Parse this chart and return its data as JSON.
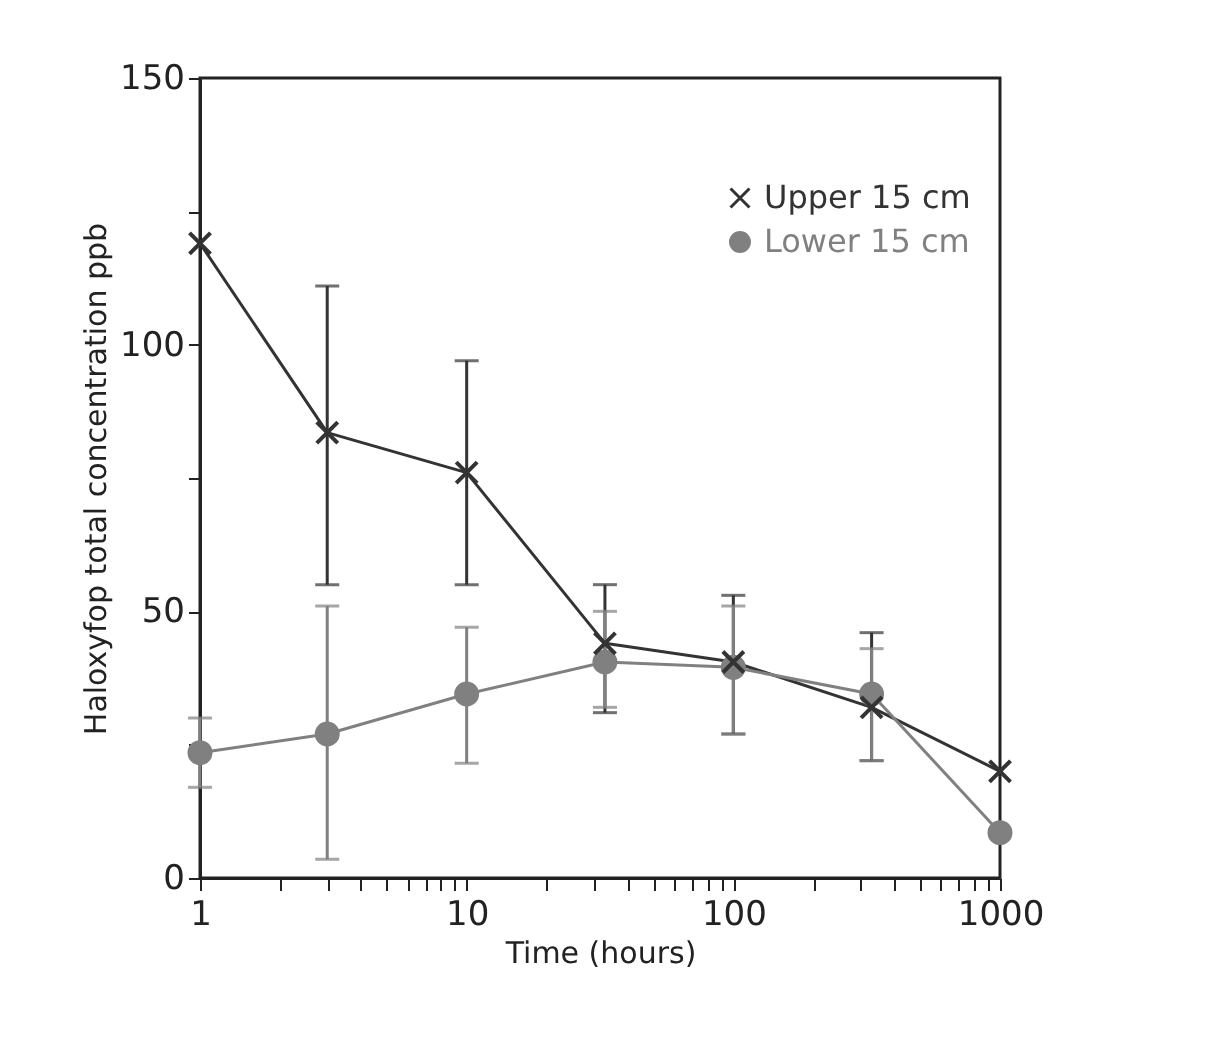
{
  "chart_data": {
    "type": "line",
    "xlabel": "Time (hours)",
    "ylabel": "Haloxyfop total concentration ppb",
    "log": "x",
    "x": [
      1,
      3,
      10,
      33,
      100,
      330,
      1000
    ],
    "xlim": [
      1,
      1000
    ],
    "xticks": [
      1,
      {
        "value": 2,
        "label": null
      },
      {
        "value": 3,
        "label": null
      },
      {
        "value": 4,
        "label": null
      },
      {
        "value": 5,
        "label": null
      },
      {
        "value": 6,
        "label": null
      },
      {
        "value": 7,
        "label": null
      },
      {
        "value": 8,
        "label": null
      },
      {
        "value": 9,
        "label": null
      },
      10,
      {
        "value": 20,
        "label": null
      },
      {
        "value": 30,
        "label": null
      },
      {
        "value": 40,
        "label": null
      },
      {
        "value": 50,
        "label": null
      },
      {
        "value": 60,
        "label": null
      },
      {
        "value": 70,
        "label": null
      },
      {
        "value": 80,
        "label": null
      },
      {
        "value": 90,
        "label": null
      },
      100,
      {
        "value": 200,
        "label": null
      },
      {
        "value": 300,
        "label": null
      },
      {
        "value": 400,
        "label": null
      },
      {
        "value": 500,
        "label": null
      },
      {
        "value": 600,
        "label": null
      },
      {
        "value": 700,
        "label": null
      },
      {
        "value": 800,
        "label": null
      },
      {
        "value": 900,
        "label": null
      },
      1000
    ],
    "ylim": [
      0,
      150
    ],
    "yticks": [
      0,
      {
        "value": 25,
        "label": null
      },
      50,
      {
        "value": 75,
        "label": null
      },
      100,
      {
        "value": 125,
        "label": null
      },
      150
    ],
    "grid": false,
    "legend": "top right",
    "line_style": "solid",
    "series": [
      {
        "name": "Upper 15 cm",
        "color": "#333333",
        "marker": "cross",
        "values": [
          119,
          83.5,
          76,
          44,
          40.5,
          32,
          20
        ],
        "errors": [
          null,
          [
            55,
            111
          ],
          [
            55,
            97
          ],
          [
            31,
            55
          ],
          [
            27,
            53
          ],
          [
            22,
            46
          ],
          null
        ]
      },
      {
        "name": "Lower 15 cm",
        "color": "#808080",
        "marker": "circle",
        "values": [
          23.5,
          27,
          34.5,
          40.5,
          39.5,
          34.5,
          8.5
        ],
        "errors": [
          [
            17,
            30
          ],
          [
            3.5,
            51
          ],
          [
            21.5,
            47
          ],
          [
            32,
            50
          ],
          [
            27,
            51
          ],
          [
            22,
            43
          ],
          null
        ]
      }
    ]
  }
}
